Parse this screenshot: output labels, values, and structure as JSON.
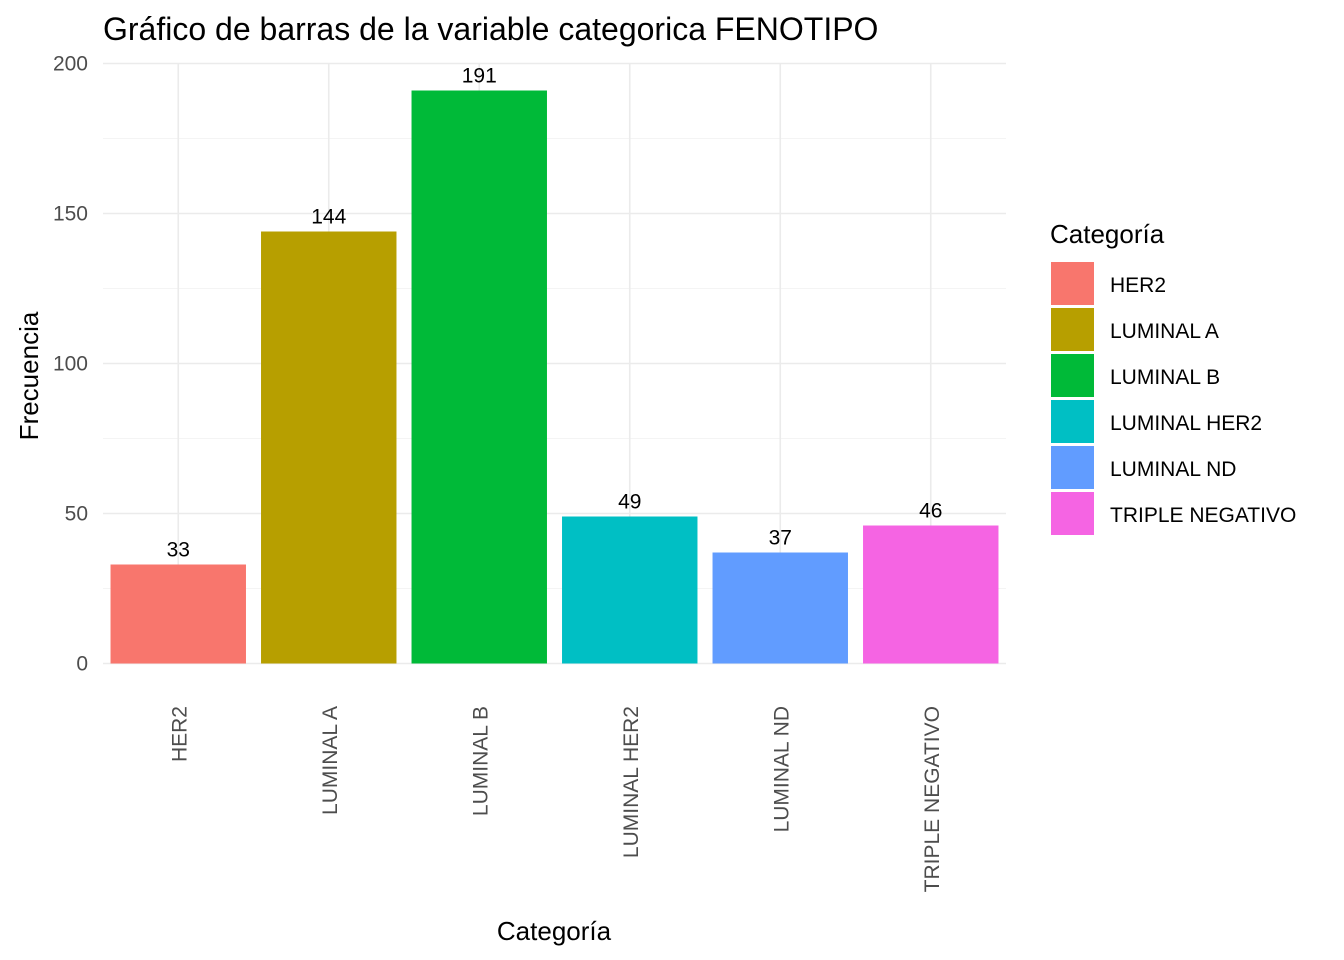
{
  "chart_data": {
    "type": "bar",
    "title": "Gráfico de barras de la variable categorica FENOTIPO",
    "xlabel": "Categoría",
    "ylabel": "Frecuencia",
    "categories": [
      "HER2",
      "LUMINAL A",
      "LUMINAL B",
      "LUMINAL HER2",
      "LUMINAL ND",
      "TRIPLE NEGATIVO"
    ],
    "values": [
      33,
      144,
      191,
      49,
      37,
      46
    ],
    "data_labels": [
      "33",
      "144",
      "191",
      "49",
      "37",
      "46"
    ],
    "colors": [
      "#F8766D",
      "#B79F00",
      "#00BA38",
      "#00BFC4",
      "#619CFF",
      "#F564E3"
    ],
    "ylim": [
      0,
      200
    ],
    "yticks": [
      0,
      50,
      100,
      150,
      200
    ],
    "ytick_labels": [
      "0",
      "50",
      "100",
      "150",
      "200"
    ],
    "grid": true,
    "legend": {
      "title": "Categoría",
      "placement": "right",
      "entries": [
        "HER2",
        "LUMINAL A",
        "LUMINAL B",
        "LUMINAL HER2",
        "LUMINAL ND",
        "TRIPLE NEGATIVO"
      ]
    }
  }
}
